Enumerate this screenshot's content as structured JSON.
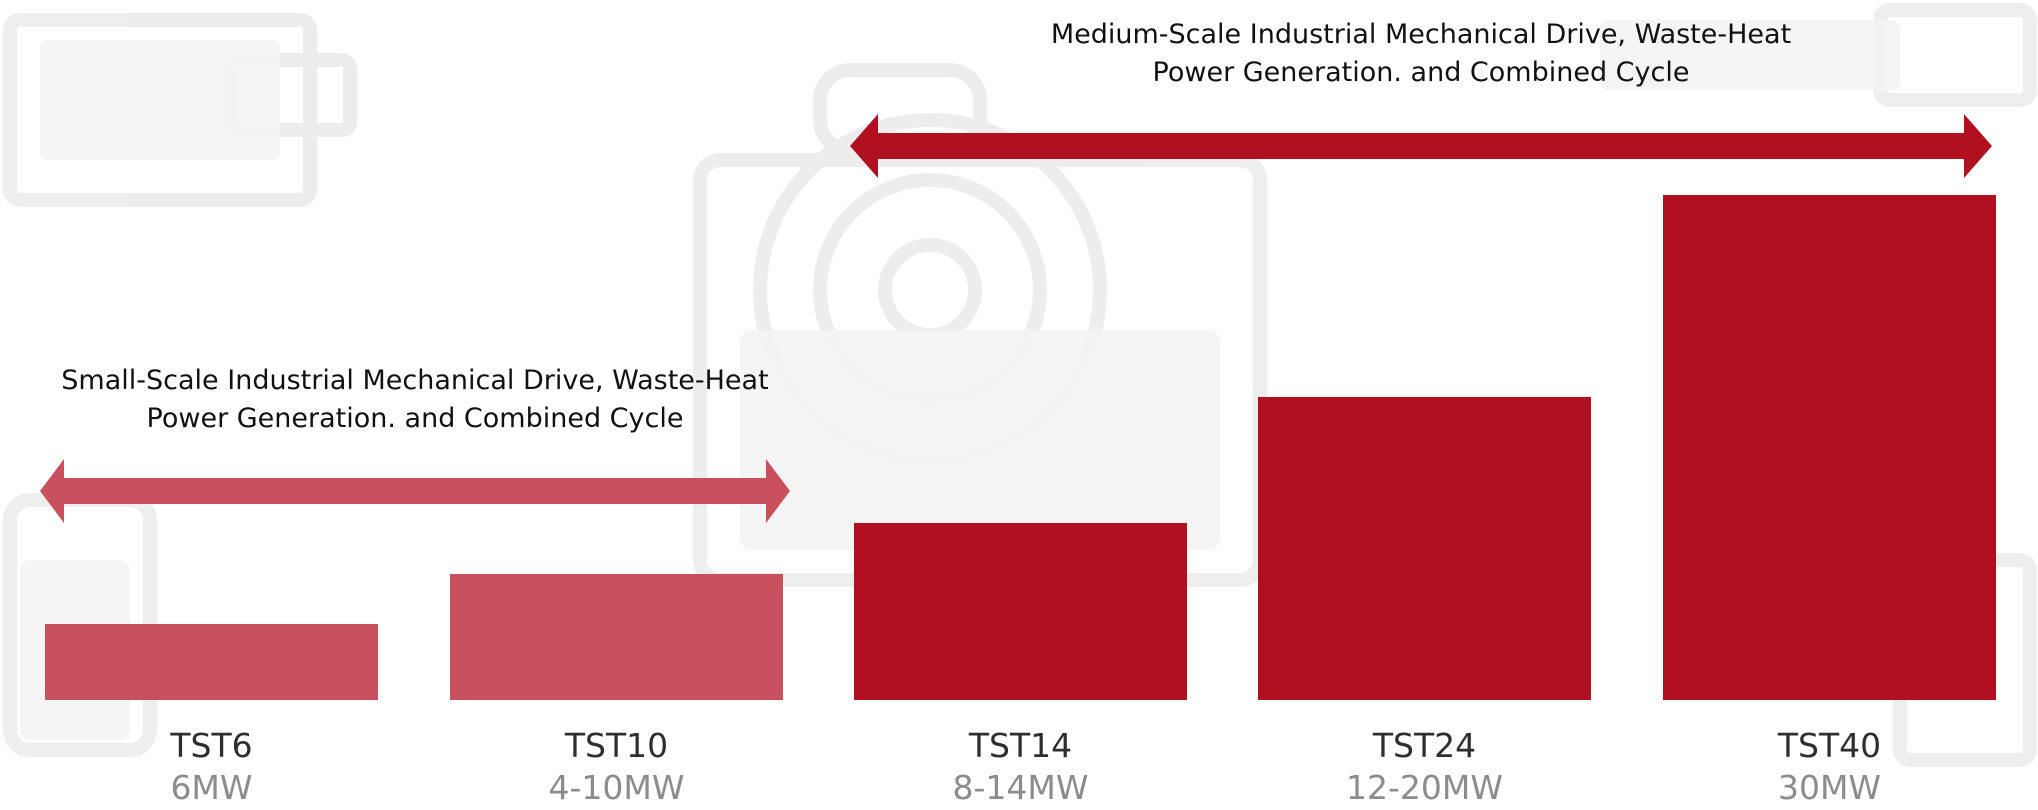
{
  "chart_data": {
    "type": "bar",
    "title": "",
    "xlabel": "",
    "ylabel": "",
    "categories": [
      "TST6",
      "TST10",
      "TST14",
      "TST24",
      "TST40"
    ],
    "power_labels": [
      "6MW",
      "4-10MW",
      "8-14MW",
      "12-20MW",
      "30MW"
    ],
    "values": [
      6,
      10,
      14,
      24,
      40
    ],
    "ylim": [
      0,
      40
    ],
    "grid": false,
    "bar_colors": [
      "#c9515e",
      "#c9515e",
      "#b01020",
      "#b01020",
      "#b01020"
    ],
    "ranges": [
      {
        "label_line1": "Small-Scale Industrial Mechanical Drive, Waste-Heat",
        "label_line2": "Power Generation. and Combined Cycle",
        "from": "TST6",
        "to": "TST10",
        "color": "#c9515e"
      },
      {
        "label_line1": "Medium-Scale Industrial Mechanical Drive, Waste-Heat",
        "label_line2": "Power Generation. and Combined Cycle",
        "from": "TST14",
        "to": "TST40",
        "color": "#b01020"
      }
    ]
  }
}
